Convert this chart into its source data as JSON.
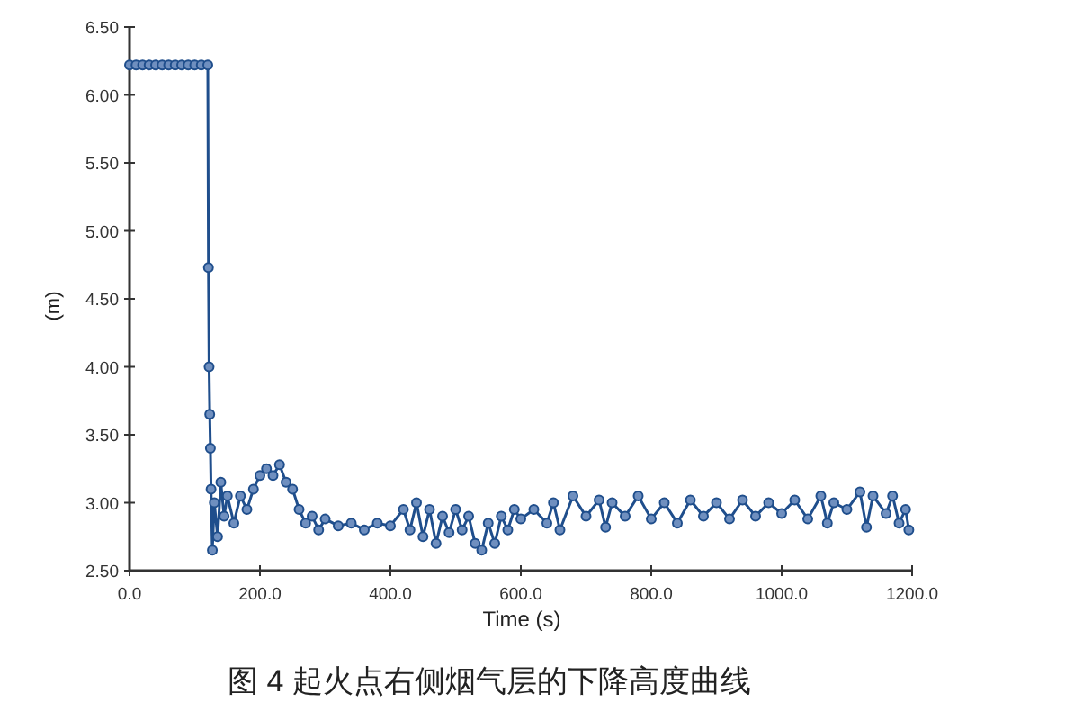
{
  "chart_data": {
    "type": "line",
    "marker": "circle",
    "xlabel": "Time (s)",
    "ylabel": "(m)",
    "annotations": [
      "图 4 起火点右侧烟气层的下降高度曲线"
    ],
    "xlim": [
      0,
      1200
    ],
    "ylim": [
      2.5,
      6.5
    ],
    "xticks": [
      {
        "value": 0,
        "label": "0.0"
      },
      {
        "value": 200,
        "label": "200.0"
      },
      {
        "value": 400,
        "label": "400.0"
      },
      {
        "value": 600,
        "label": "600.0"
      },
      {
        "value": 800,
        "label": "800.0"
      },
      {
        "value": 1000,
        "label": "1000.0"
      },
      {
        "value": 1200,
        "label": "1200.0"
      }
    ],
    "yticks": [
      {
        "value": 2.5,
        "label": "2.50"
      },
      {
        "value": 3,
        "label": "3.00"
      },
      {
        "value": 3.5,
        "label": "3.50"
      },
      {
        "value": 4,
        "label": "4.00"
      },
      {
        "value": 4.5,
        "label": "4.50"
      },
      {
        "value": 5,
        "label": "5.00"
      },
      {
        "value": 5.5,
        "label": "5.50"
      },
      {
        "value": 6,
        "label": "6.00"
      },
      {
        "value": 6.5,
        "label": "6.50"
      }
    ],
    "x": [
      0,
      10,
      20,
      30,
      40,
      50,
      60,
      70,
      80,
      90,
      100,
      110,
      120,
      121,
      122,
      123,
      124,
      125,
      127,
      130,
      135,
      140,
      145,
      150,
      160,
      170,
      180,
      190,
      200,
      210,
      220,
      230,
      240,
      250,
      260,
      270,
      280,
      290,
      300,
      320,
      340,
      360,
      380,
      400,
      420,
      430,
      440,
      450,
      460,
      470,
      480,
      490,
      500,
      510,
      520,
      530,
      540,
      550,
      560,
      570,
      580,
      590,
      600,
      620,
      640,
      650,
      660,
      680,
      700,
      720,
      730,
      740,
      760,
      780,
      800,
      820,
      840,
      860,
      880,
      900,
      920,
      940,
      960,
      980,
      1000,
      1020,
      1040,
      1060,
      1070,
      1080,
      1100,
      1120,
      1130,
      1140,
      1160,
      1170,
      1180,
      1190,
      1195
    ],
    "series": [
      {
        "color": "#1f4e8c",
        "values": [
          6.22,
          6.22,
          6.22,
          6.22,
          6.22,
          6.22,
          6.22,
          6.22,
          6.22,
          6.22,
          6.22,
          6.22,
          6.22,
          4.73,
          4.0,
          3.65,
          3.4,
          3.1,
          2.65,
          3.0,
          2.75,
          3.15,
          2.9,
          3.05,
          2.85,
          3.05,
          2.95,
          3.1,
          3.2,
          3.25,
          3.2,
          3.28,
          3.15,
          3.1,
          2.95,
          2.85,
          2.9,
          2.8,
          2.88,
          2.83,
          2.85,
          2.8,
          2.85,
          2.83,
          2.95,
          2.8,
          3.0,
          2.75,
          2.95,
          2.7,
          2.9,
          2.78,
          2.95,
          2.8,
          2.9,
          2.7,
          2.65,
          2.85,
          2.7,
          2.9,
          2.8,
          2.95,
          2.88,
          2.95,
          2.85,
          3.0,
          2.8,
          3.05,
          2.9,
          3.02,
          2.82,
          3.0,
          2.9,
          3.05,
          2.88,
          3.0,
          2.85,
          3.02,
          2.9,
          3.0,
          2.88,
          3.02,
          2.9,
          3.0,
          2.92,
          3.02,
          2.88,
          3.05,
          2.85,
          3.0,
          2.95,
          3.08,
          2.82,
          3.05,
          2.92,
          3.05,
          2.85,
          2.95,
          2.8
        ]
      }
    ]
  }
}
